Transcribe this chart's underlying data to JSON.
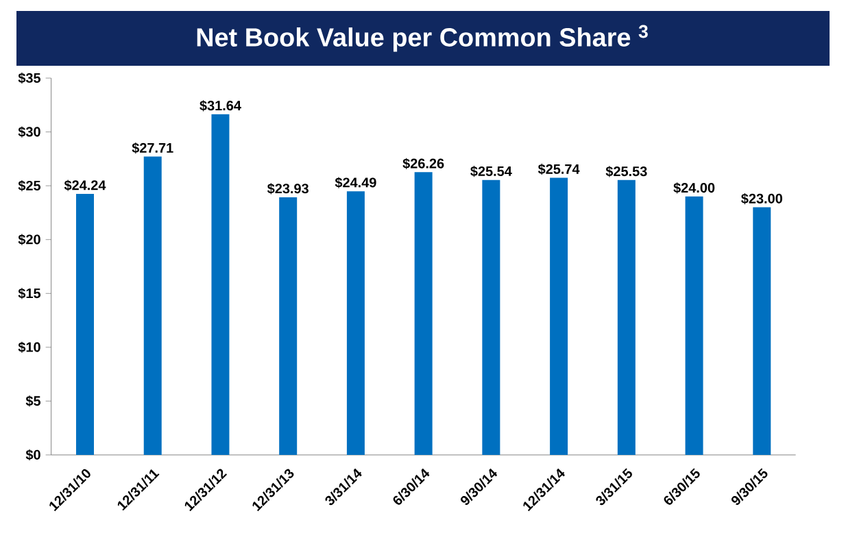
{
  "chart_data": {
    "type": "bar",
    "title": "Net Book Value per Common Share $^{3}$",
    "categories": [
      "12/31/10",
      "12/31/11",
      "12/31/12",
      "12/31/13",
      "3/31/14",
      "6/30/14",
      "9/30/14",
      "12/31/14",
      "3/31/15",
      "6/30/15",
      "9/30/15"
    ],
    "values": [
      24.24,
      27.71,
      31.64,
      23.93,
      24.49,
      26.26,
      25.54,
      25.74,
      25.53,
      24.0,
      23.0
    ],
    "value_labels": [
      "$24.24",
      "$27.71",
      "$31.64",
      "$23.93",
      "$24.49",
      "$26.26",
      "$25.54",
      "$25.74",
      "$25.53",
      "$24.00",
      "$23.00"
    ],
    "color": "#0070c0",
    "ylim": [
      0,
      35
    ],
    "yticks": [
      {
        "value": 0,
        "label": "$0"
      },
      {
        "value": 5,
        "label": "$5"
      },
      {
        "value": 10,
        "label": "$10"
      },
      {
        "value": 15,
        "label": "$15"
      },
      {
        "value": 20,
        "label": "$20"
      },
      {
        "value": 25,
        "label": "$25"
      },
      {
        "value": 30,
        "label": "$30"
      },
      {
        "value": 35,
        "label": "$35"
      }
    ]
  }
}
